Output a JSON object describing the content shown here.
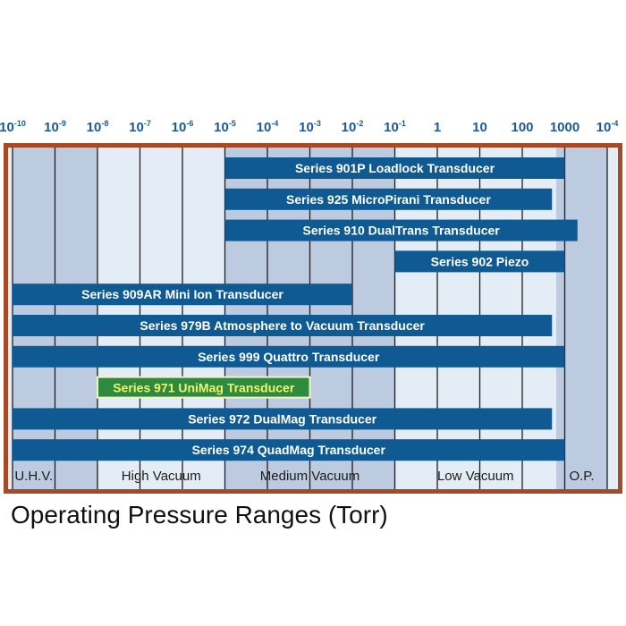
{
  "caption": "Operating Pressure Ranges (Torr)",
  "colors": {
    "frame": "#a64a26",
    "bar": "#0f5a92",
    "bar_text": "#ffffff",
    "highlight_bar": "#2e8a3e",
    "highlight_text": "#f4f46a",
    "highlight_border": "#f2f2c8",
    "band_dark": "#bccbe0",
    "band_light": "#e4ecf6",
    "tick_text": "#1a5a96",
    "grid": "#1e1e1e"
  },
  "chart_data": {
    "type": "bar",
    "orientation": "horizontal-range",
    "x_scale": "log10",
    "xlim": [
      -10,
      4
    ],
    "tick_labels": [
      {
        "base": "10",
        "exp": "-10"
      },
      {
        "base": "10",
        "exp": "-9"
      },
      {
        "base": "10",
        "exp": "-8"
      },
      {
        "base": "10",
        "exp": "-7"
      },
      {
        "base": "10",
        "exp": "-6"
      },
      {
        "base": "10",
        "exp": "-5"
      },
      {
        "base": "10",
        "exp": "-4"
      },
      {
        "base": "10",
        "exp": "-3"
      },
      {
        "base": "10",
        "exp": "-2"
      },
      {
        "base": "10",
        "exp": "-1"
      },
      {
        "base": "1",
        "exp": ""
      },
      {
        "base": "10",
        "exp": ""
      },
      {
        "base": "100",
        "exp": ""
      },
      {
        "base": "1000",
        "exp": ""
      },
      {
        "base": "10",
        "exp": "-4"
      }
    ],
    "bands": [
      {
        "label": "U.H.V.",
        "from": -10,
        "to": -9,
        "shade": "dark"
      },
      {
        "label": "",
        "from": -9,
        "to": -8,
        "shade": "dark"
      },
      {
        "label": "High Vacuum",
        "from": -8,
        "to": -5,
        "shade": "light"
      },
      {
        "label": "Medium Vacuum",
        "from": -5,
        "to": -1,
        "shade": "dark"
      },
      {
        "label": "Low Vacuum",
        "from": -1,
        "to": 2.8,
        "shade": "light"
      },
      {
        "label": "O.P.",
        "from": 2.8,
        "to": 4,
        "shade": "dark"
      }
    ],
    "series": [
      {
        "name": "Series 901P Loadlock Transducer",
        "from": -5,
        "to": 3.0,
        "highlight": false
      },
      {
        "name": "Series 925 MicroPirani Transducer",
        "from": -5,
        "to": 2.7,
        "highlight": false
      },
      {
        "name": "Series 910 DualTrans Transducer",
        "from": -5,
        "to": 3.3,
        "highlight": false
      },
      {
        "name": "Series 902 Piezo",
        "from": -1,
        "to": 3.0,
        "highlight": false
      },
      {
        "name": "Series 909AR Mini Ion Transducer",
        "from": -10,
        "to": -2,
        "highlight": false
      },
      {
        "name": "Series 979B Atmosphere to Vacuum Transducer",
        "from": -10,
        "to": 2.7,
        "highlight": false
      },
      {
        "name": "Series 999 Quattro Transducer",
        "from": -10,
        "to": 3.0,
        "highlight": false
      },
      {
        "name": "Series 971 UniMag Transducer",
        "from": -8,
        "to": -3,
        "highlight": true
      },
      {
        "name": "Series 972 DualMag Transducer",
        "from": -10,
        "to": 2.7,
        "highlight": false
      },
      {
        "name": "Series 974 QuadMag Transducer",
        "from": -10,
        "to": 3.0,
        "highlight": false
      }
    ]
  }
}
